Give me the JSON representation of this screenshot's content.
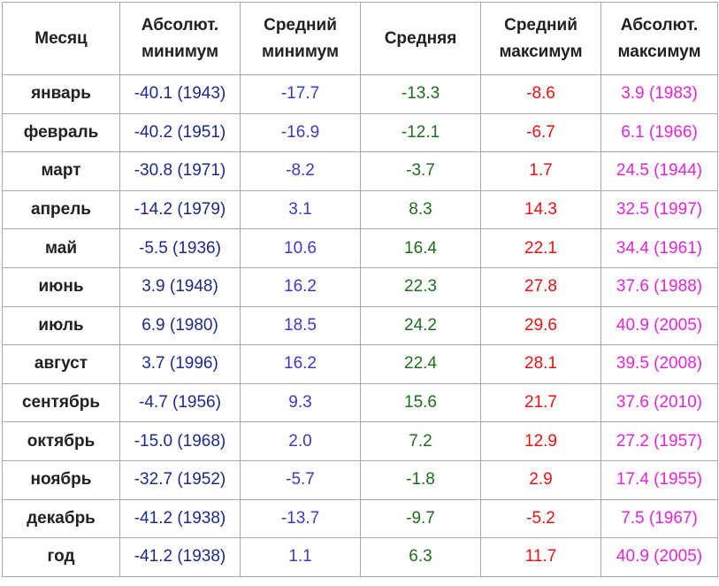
{
  "table": {
    "header": [
      "Месяц",
      "Абсолют. минимум",
      "Средний минимум",
      "Средняя",
      "Средний максимум",
      "Абсолют. максимум"
    ],
    "rows": [
      [
        "январь",
        "-40.1 (1943)",
        "-17.7",
        "-13.3",
        "-8.6",
        "3.9 (1983)"
      ],
      [
        "февраль",
        "-40.2 (1951)",
        "-16.9",
        "-12.1",
        "-6.7",
        "6.1 (1966)"
      ],
      [
        "март",
        "-30.8 (1971)",
        "-8.2",
        "-3.7",
        "1.7",
        "24.5 (1944)"
      ],
      [
        "апрель",
        "-14.2 (1979)",
        "3.1",
        "8.3",
        "14.3",
        "32.5 (1997)"
      ],
      [
        "май",
        "-5.5 (1936)",
        "10.6",
        "16.4",
        "22.1",
        "34.4 (1961)"
      ],
      [
        "июнь",
        "3.9 (1948)",
        "16.2",
        "22.3",
        "27.8",
        "37.6 (1988)"
      ],
      [
        "июль",
        "6.9 (1980)",
        "18.5",
        "24.2",
        "29.6",
        "40.9 (2005)"
      ],
      [
        "август",
        "3.7 (1996)",
        "16.2",
        "22.4",
        "28.1",
        "39.5 (2008)"
      ],
      [
        "сентябрь",
        "-4.7 (1956)",
        "9.3",
        "15.6",
        "21.7",
        "37.6 (2010)"
      ],
      [
        "октябрь",
        "-15.0 (1968)",
        "2.0",
        "7.2",
        "12.9",
        "27.2 (1957)"
      ],
      [
        "ноябрь",
        "-32.7 (1952)",
        "-5.7",
        "-1.8",
        "2.9",
        "17.4 (1955)"
      ],
      [
        "декабрь",
        "-41.2 (1938)",
        "-13.7",
        "-9.7",
        "-5.2",
        "7.5 (1967)"
      ],
      [
        "год",
        "-41.2 (1938)",
        "1.1",
        "6.3",
        "11.7",
        "40.9 (2005)"
      ]
    ]
  }
}
